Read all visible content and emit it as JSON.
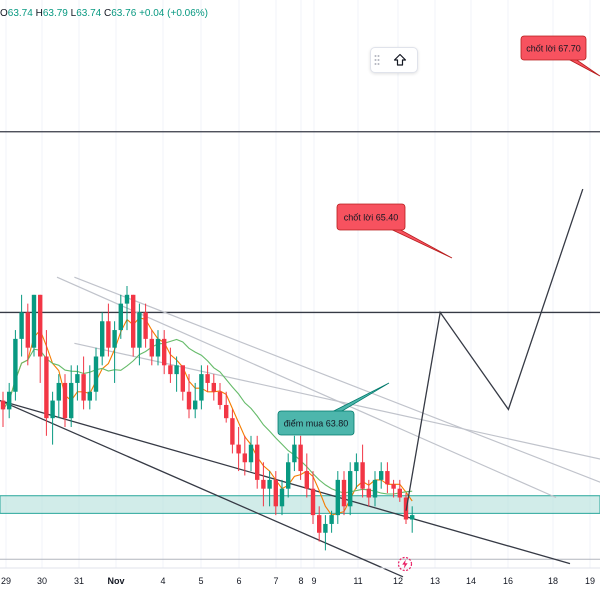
{
  "ohlc_bar": {
    "open_label": "O",
    "open": "63.74",
    "high_label": "H",
    "high": "63.79",
    "low_label": "L",
    "low": "63.74",
    "close_label": "C",
    "close": "63.76",
    "change": "+0.04 (+0.06%)"
  },
  "colors": {
    "up": "#089981",
    "down": "#f23645",
    "zone_fill": "#b2dfdb",
    "zone_border": "#26a69a",
    "label_red_fill": "#f7525f",
    "label_red_border": "#b71c1c",
    "label_teal_fill": "#4db6ac",
    "label_teal_border": "#00796b",
    "ma_fast": "#f57c00",
    "ma_slow": "#66bb6a",
    "lightning": "#e91e63"
  },
  "chart_data": {
    "type": "candlestick",
    "x_ticks": [
      "29",
      "30",
      "31",
      "Nov",
      "4",
      "5",
      "6",
      "7",
      "8",
      "9",
      "11",
      "12",
      "13",
      "14",
      "16",
      "18",
      "19"
    ],
    "ylim": [
      62.5,
      68.9
    ],
    "candles": [
      [
        64.4,
        64.5,
        64.1,
        64.3
      ],
      [
        64.3,
        64.6,
        64.2,
        64.5
      ],
      [
        64.5,
        65.2,
        64.4,
        65.1
      ],
      [
        65.1,
        65.6,
        64.9,
        65.4
      ],
      [
        65.4,
        65.5,
        64.8,
        65.0
      ],
      [
        65.0,
        65.6,
        64.9,
        65.6
      ],
      [
        65.6,
        65.6,
        64.6,
        64.9
      ],
      [
        64.9,
        65.2,
        64.0,
        64.2
      ],
      [
        64.2,
        64.5,
        63.9,
        64.4
      ],
      [
        64.4,
        64.7,
        64.2,
        64.6
      ],
      [
        64.6,
        64.7,
        64.1,
        64.2
      ],
      [
        64.2,
        64.8,
        64.1,
        64.6
      ],
      [
        64.6,
        64.8,
        64.4,
        64.7
      ],
      [
        64.7,
        64.9,
        64.3,
        64.4
      ],
      [
        64.4,
        64.8,
        64.3,
        64.5
      ],
      [
        64.5,
        65.0,
        64.4,
        64.9
      ],
      [
        64.9,
        65.4,
        64.8,
        65.3
      ],
      [
        65.3,
        65.5,
        64.9,
        65.0
      ],
      [
        65.0,
        65.3,
        64.6,
        65.2
      ],
      [
        65.2,
        65.6,
        65.1,
        65.5
      ],
      [
        65.5,
        65.7,
        65.2,
        65.6
      ],
      [
        65.6,
        65.6,
        64.9,
        65.0
      ],
      [
        65.0,
        65.5,
        64.8,
        65.4
      ],
      [
        65.4,
        65.5,
        65.0,
        65.1
      ],
      [
        65.1,
        65.2,
        64.8,
        64.9
      ],
      [
        64.9,
        65.2,
        64.8,
        65.1
      ],
      [
        65.1,
        65.2,
        64.7,
        64.8
      ],
      [
        64.8,
        65.0,
        64.6,
        64.7
      ],
      [
        64.7,
        64.9,
        64.5,
        64.8
      ],
      [
        64.8,
        64.8,
        64.4,
        64.5
      ],
      [
        64.5,
        64.7,
        64.2,
        64.3
      ],
      [
        64.3,
        64.6,
        64.2,
        64.4
      ],
      [
        64.4,
        64.8,
        64.3,
        64.7
      ],
      [
        64.7,
        64.8,
        64.5,
        64.6
      ],
      [
        64.6,
        64.7,
        64.4,
        64.5
      ],
      [
        64.5,
        64.6,
        64.3,
        64.35
      ],
      [
        64.35,
        64.5,
        64.15,
        64.2
      ],
      [
        64.2,
        64.3,
        63.8,
        63.9
      ],
      [
        63.9,
        64.1,
        63.6,
        63.8
      ],
      [
        63.8,
        64.0,
        63.55,
        63.7
      ],
      [
        63.7,
        64.0,
        63.6,
        63.9
      ],
      [
        63.9,
        64.0,
        63.4,
        63.5
      ],
      [
        63.5,
        63.7,
        63.2,
        63.4
      ],
      [
        63.4,
        63.6,
        63.2,
        63.5
      ],
      [
        63.5,
        63.6,
        63.1,
        63.2
      ],
      [
        63.2,
        63.5,
        63.1,
        63.4
      ],
      [
        63.4,
        63.8,
        63.3,
        63.7
      ],
      [
        63.7,
        64.0,
        63.6,
        63.9
      ],
      [
        63.9,
        64.0,
        63.5,
        63.6
      ],
      [
        63.6,
        63.8,
        63.3,
        63.4
      ],
      [
        63.4,
        63.6,
        63.0,
        63.1
      ],
      [
        63.1,
        63.2,
        62.8,
        62.9
      ],
      [
        62.9,
        63.1,
        62.7,
        63.0
      ],
      [
        63.0,
        63.15,
        62.9,
        63.1
      ],
      [
        63.1,
        63.6,
        63.0,
        63.5
      ],
      [
        63.5,
        63.6,
        63.1,
        63.2
      ],
      [
        63.2,
        63.7,
        63.1,
        63.6
      ],
      [
        63.6,
        63.8,
        63.4,
        63.7
      ],
      [
        63.7,
        63.9,
        63.3,
        63.4
      ],
      [
        63.4,
        63.5,
        63.2,
        63.3
      ],
      [
        63.3,
        63.6,
        63.2,
        63.5
      ],
      [
        63.5,
        63.7,
        63.4,
        63.6
      ],
      [
        63.6,
        63.7,
        63.35,
        63.45
      ],
      [
        63.45,
        63.5,
        63.3,
        63.4
      ],
      [
        63.4,
        63.5,
        63.25,
        63.3
      ],
      [
        63.3,
        63.35,
        63.0,
        63.05
      ],
      [
        63.05,
        63.2,
        62.9,
        63.1
      ]
    ],
    "horizontal_lines": [
      67.45,
      65.4,
      62.6
    ],
    "buy_zone": [
      63.12,
      63.32
    ],
    "trendlines": [
      {
        "from": [
          0,
          64.4
        ],
        "to": [
          65,
          62.4
        ]
      },
      {
        "from": [
          12,
          65.8
        ],
        "to": [
          125,
          62.7
        ]
      },
      {
        "from": [
          12,
          65.05
        ],
        "to": [
          125,
          63.3
        ]
      }
    ],
    "projection": [
      {
        "bar": 65.5,
        "price": 63.15
      },
      {
        "bar": 71.0,
        "price": 65.4
      },
      {
        "bar": 82.0,
        "price": 64.3
      },
      {
        "bar": 94.0,
        "price": 66.8
      }
    ],
    "annotations": [
      {
        "text": "chốt lời 67.70",
        "price": 67.7
      },
      {
        "text": "chốt lời 65.40",
        "price": 65.4
      },
      {
        "text": "điểm mua 63.80",
        "price": 63.8
      }
    ]
  }
}
